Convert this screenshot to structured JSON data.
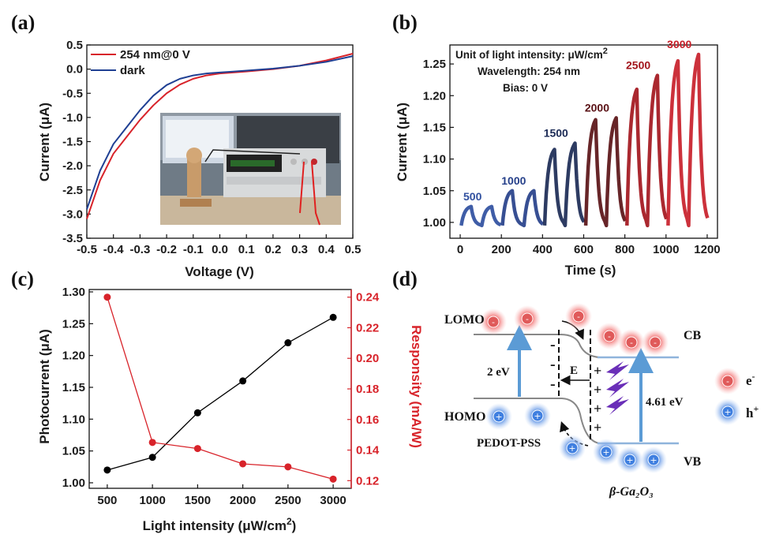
{
  "figure": {
    "panels": [
      "(a)",
      "(b)",
      "(c)",
      "(d)"
    ]
  },
  "chart_data": [
    {
      "type": "line",
      "panel": "(a)",
      "xlabel": "Voltage (V)",
      "ylabel": "Current (μA)",
      "xlim": [
        -0.5,
        0.5
      ],
      "ylim": [
        -3.5,
        0.5
      ],
      "xticks": [
        "-0.5",
        "-0.4",
        "-0.3",
        "-0.2",
        "-0.1",
        "0.0",
        "0.1",
        "0.2",
        "0.3",
        "0.4",
        "0.5"
      ],
      "yticks": [
        "0.5",
        "0.0",
        "-0.5",
        "-1.0",
        "-1.5",
        "-2.0",
        "-2.5",
        "-3.0",
        "-3.5"
      ],
      "legend_position": "top-left",
      "series": [
        {
          "name": "254 nm@0 V",
          "color": "#d8232a",
          "x": [
            -0.5,
            -0.45,
            -0.4,
            -0.35,
            -0.3,
            -0.25,
            -0.2,
            -0.15,
            -0.1,
            -0.05,
            0.0,
            0.05,
            0.1,
            0.2,
            0.3,
            0.4,
            0.5
          ],
          "y": [
            -3.1,
            -2.3,
            -1.75,
            -1.4,
            -1.05,
            -0.75,
            -0.5,
            -0.32,
            -0.2,
            -0.13,
            -0.09,
            -0.07,
            -0.05,
            0.0,
            0.07,
            0.18,
            0.32
          ]
        },
        {
          "name": "dark",
          "color": "#1f3f93",
          "x": [
            -0.5,
            -0.45,
            -0.4,
            -0.35,
            -0.3,
            -0.25,
            -0.2,
            -0.15,
            -0.1,
            -0.05,
            0.0,
            0.05,
            0.1,
            0.2,
            0.3,
            0.4,
            0.5
          ],
          "y": [
            -2.9,
            -2.1,
            -1.55,
            -1.2,
            -0.85,
            -0.55,
            -0.33,
            -0.2,
            -0.13,
            -0.09,
            -0.07,
            -0.05,
            -0.03,
            0.01,
            0.07,
            0.15,
            0.27
          ]
        }
      ],
      "inset": "photo of measurement setup with source meter"
    },
    {
      "type": "line",
      "panel": "(b)",
      "xlabel": "Time (s)",
      "ylabel": "Current (μA)",
      "xlim": [
        -50,
        1250
      ],
      "ylim": [
        0.975,
        1.28
      ],
      "xticks": [
        "0",
        "200",
        "400",
        "600",
        "800",
        "1000",
        "1200"
      ],
      "yticks": [
        "1.00",
        "1.05",
        "1.10",
        "1.15",
        "1.20",
        "1.25"
      ],
      "annotation_lines": [
        "Unit of light intensity: μW/cm",
        "Wavelength: 254 nm",
        "Bias: 0 V"
      ],
      "annotation_superscript": "2",
      "pulses": [
        {
          "label": "500",
          "color": "#2f4f9f",
          "peaks": [
            {
              "t": 50,
              "y": 1.025
            },
            {
              "t": 150,
              "y": 1.025
            }
          ]
        },
        {
          "label": "1000",
          "color": "#26408a",
          "peaks": [
            {
              "t": 250,
              "y": 1.05
            },
            {
              "t": 355,
              "y": 1.05
            }
          ]
        },
        {
          "label": "1500",
          "color": "#1b2a55",
          "peaks": [
            {
              "t": 455,
              "y": 1.115
            },
            {
              "t": 555,
              "y": 1.125
            }
          ]
        },
        {
          "label": "2000",
          "color": "#5a1216",
          "peaks": [
            {
              "t": 655,
              "y": 1.162
            },
            {
              "t": 755,
              "y": 1.165
            }
          ]
        },
        {
          "label": "2500",
          "color": "#a3161d",
          "peaks": [
            {
              "t": 855,
              "y": 1.21
            },
            {
              "t": 955,
              "y": 1.232
            }
          ]
        },
        {
          "label": "3000",
          "color": "#c8202a",
          "peaks": [
            {
              "t": 1055,
              "y": 1.255
            },
            {
              "t": 1155,
              "y": 1.265
            }
          ]
        }
      ]
    },
    {
      "type": "line",
      "panel": "(c)",
      "xlabel": "Light intensity (μW/cm",
      "xlabel_superscript": "2",
      "ylabel_left": "Photocurrent (μA)",
      "ylabel_right": "Responsity (mA/W)",
      "categories": [
        500,
        1000,
        1500,
        2000,
        2500,
        3000
      ],
      "xticks": [
        "500",
        "1000",
        "1500",
        "2000",
        "2500",
        "3000"
      ],
      "yticks_left": [
        "1.00",
        "1.05",
        "1.10",
        "1.15",
        "1.20",
        "1.25",
        "1.30"
      ],
      "yticks_right": [
        "0.12",
        "0.14",
        "0.16",
        "0.18",
        "0.20",
        "0.22",
        "0.24"
      ],
      "ylim_left": [
        1.0,
        1.3
      ],
      "ylim_right": [
        0.115,
        0.245
      ],
      "series": [
        {
          "name": "Photocurrent",
          "axis": "left",
          "color": "#000000",
          "values": [
            1.02,
            1.04,
            1.11,
            1.16,
            1.22,
            1.26
          ]
        },
        {
          "name": "Responsity",
          "axis": "right",
          "color": "#d8232a",
          "values": [
            0.24,
            0.145,
            0.141,
            0.131,
            0.129,
            0.121
          ]
        }
      ]
    },
    {
      "type": "diagram",
      "panel": "(d)",
      "labels": {
        "lomo": "LOMO",
        "homo": "HOMO",
        "cb": "CB",
        "vb": "VB",
        "gap_left": "2 eV",
        "gap_right": "4.61 eV",
        "field": "E",
        "pedot": "PEDOT-PSS",
        "ga2o3": "β-Ga₂O₃",
        "electron_legend": "e",
        "electron_sup": "-",
        "hole_legend": "h",
        "hole_sup": "+",
        "electron_symbol": "-",
        "hole_symbol": "+",
        "plus_sign": "+",
        "minus_sign": "-"
      }
    }
  ]
}
